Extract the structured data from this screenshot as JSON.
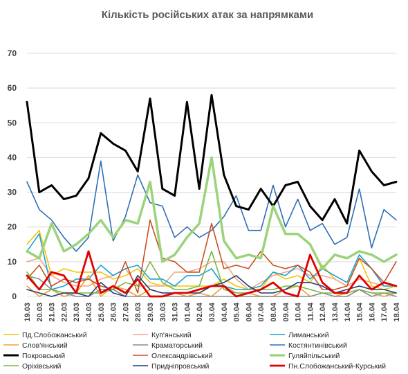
{
  "chart_data": {
    "type": "line",
    "title": "Кількість російських атак за напрямками",
    "xlabel": "",
    "ylabel": "",
    "ylim": [
      0,
      70
    ],
    "yticks": [
      0,
      10,
      20,
      30,
      40,
      50,
      60,
      70
    ],
    "grid": true,
    "legend_position": "bottom",
    "categories": [
      "19.03",
      "20.03",
      "21.03",
      "22.03",
      "23.03",
      "24.03",
      "25.03",
      "26.03",
      "27.03",
      "28.03",
      "29.03",
      "30.03",
      "31.03",
      "01.04",
      "02.04",
      "03.04",
      "04.04",
      "05.04",
      "06.04",
      "07.04",
      "08.04",
      "09.04",
      "10.04",
      "11.04",
      "12.04",
      "13.04",
      "14.04",
      "15.04",
      "16.04",
      "17.04",
      "18.04"
    ],
    "x_labels_shown": [
      "19.03",
      "20.03",
      "21.03",
      "22.03",
      "23.03",
      "24.03",
      "25.03",
      "26.03",
      "27.03",
      "28.03",
      "29.03",
      "30.03",
      "31.03",
      "01.04",
      "02.04",
      "03.04",
      "04.04",
      "05.04",
      "06.04",
      "07.04",
      "08.04",
      "09.04",
      "10.04",
      "11.04",
      "12.04",
      "13.04",
      "14.04",
      "15.04",
      "16.04",
      "17.04",
      "18.04"
    ],
    "series": [
      {
        "name": "Пд.Слобожанський",
        "color": "#f5c400",
        "width": 1.6,
        "values": [
          15,
          19,
          6,
          8,
          7,
          7,
          7,
          5,
          6,
          8,
          4,
          3,
          3,
          3,
          3,
          3,
          5,
          3,
          2,
          2,
          7,
          5,
          6,
          4,
          9,
          5,
          3,
          11,
          3,
          2,
          3
        ]
      },
      {
        "name": "Куп'янський",
        "color": "#f4a582",
        "width": 1.6,
        "values": [
          10,
          11,
          6,
          4,
          3,
          3,
          5,
          6,
          8,
          3,
          3,
          3,
          7,
          7,
          8,
          10,
          10,
          5,
          2,
          4,
          6,
          7,
          8,
          6,
          6,
          5,
          3,
          5,
          4,
          3,
          3
        ]
      },
      {
        "name": "Лиманський",
        "color": "#17a2d4",
        "width": 1.6,
        "values": [
          13,
          18,
          2,
          3,
          5,
          5,
          9,
          6,
          8,
          9,
          5,
          5,
          3,
          6,
          6,
          8,
          3,
          2,
          2,
          3,
          7,
          6,
          9,
          5,
          8,
          6,
          4,
          12,
          8,
          3,
          3
        ]
      },
      {
        "name": "Слов'янський",
        "color": "#f0a030",
        "width": 1.6,
        "values": [
          3,
          0,
          2,
          0,
          1,
          6,
          0,
          3,
          2,
          0,
          2,
          1,
          1,
          0,
          1,
          0,
          3,
          1,
          1,
          0,
          0,
          2,
          3,
          0,
          1,
          0,
          1,
          2,
          1,
          0,
          1
        ]
      },
      {
        "name": "Краматорський",
        "color": "#8c8c8c",
        "width": 1.6,
        "values": [
          6,
          5,
          2,
          1,
          0,
          0,
          2,
          2,
          0,
          0,
          0,
          0,
          0,
          0,
          0,
          0,
          0,
          0,
          0,
          0,
          0,
          0,
          0,
          0,
          1,
          0,
          0,
          2,
          0,
          1,
          0
        ]
      },
      {
        "name": "Костянтинівський",
        "color": "#2e6fb5",
        "width": 1.6,
        "values": [
          33,
          25,
          22,
          17,
          13,
          17,
          39,
          16,
          23,
          35,
          27,
          26,
          17,
          20,
          17,
          19,
          23,
          29,
          19,
          19,
          32,
          20,
          28,
          19,
          21,
          15,
          17,
          31,
          14,
          25,
          22
        ]
      },
      {
        "name": "Покровський",
        "color": "#000000",
        "width": 3,
        "values": [
          56,
          30,
          32,
          28,
          29,
          34,
          47,
          44,
          42,
          36,
          57,
          31,
          29,
          56,
          31,
          58,
          35,
          26,
          25,
          31,
          26,
          32,
          33,
          26,
          22,
          28,
          21,
          42,
          36,
          32,
          33
        ]
      },
      {
        "name": "Олександрівський",
        "color": "#c8501e",
        "width": 1.6,
        "values": [
          5,
          9,
          3,
          5,
          4,
          5,
          3,
          2,
          10,
          1,
          22,
          11,
          10,
          7,
          7,
          21,
          8,
          9,
          8,
          13,
          9,
          8,
          9,
          7,
          2,
          2,
          3,
          11,
          8,
          4,
          10
        ]
      },
      {
        "name": "Гуляйпільський",
        "color": "#9bd37a",
        "width": 3.5,
        "values": [
          13,
          11,
          21,
          13,
          15,
          18,
          22,
          17,
          22,
          21,
          33,
          10,
          12,
          17,
          21,
          40,
          16,
          11,
          12,
          11,
          26,
          18,
          18,
          15,
          8,
          12,
          11,
          13,
          12,
          10,
          12
        ]
      },
      {
        "name": "Оріхівський",
        "color": "#7ab548",
        "width": 1.6,
        "values": [
          7,
          2,
          2,
          1,
          1,
          1,
          1,
          2,
          4,
          3,
          10,
          4,
          2,
          2,
          3,
          13,
          2,
          1,
          1,
          2,
          2,
          3,
          3,
          2,
          1,
          1,
          1,
          2,
          1,
          1,
          1
        ]
      },
      {
        "name": "Придніпровський",
        "color": "#1f3d73",
        "width": 1.6,
        "values": [
          2,
          1,
          0,
          1,
          1,
          0,
          4,
          1,
          0,
          6,
          2,
          1,
          1,
          1,
          1,
          3,
          4,
          6,
          3,
          1,
          1,
          2,
          4,
          4,
          3,
          1,
          2,
          3,
          2,
          2,
          1
        ]
      },
      {
        "name": "Пн.Слобожанський-Курський",
        "color": "#e00000",
        "width": 2.8,
        "values": [
          6,
          2,
          7,
          6,
          1,
          13,
          1,
          3,
          1,
          5,
          0,
          0,
          1,
          1,
          2,
          3,
          3,
          0,
          1,
          2,
          4,
          1,
          0,
          12,
          4,
          1,
          1,
          6,
          2,
          4,
          3
        ]
      }
    ]
  }
}
